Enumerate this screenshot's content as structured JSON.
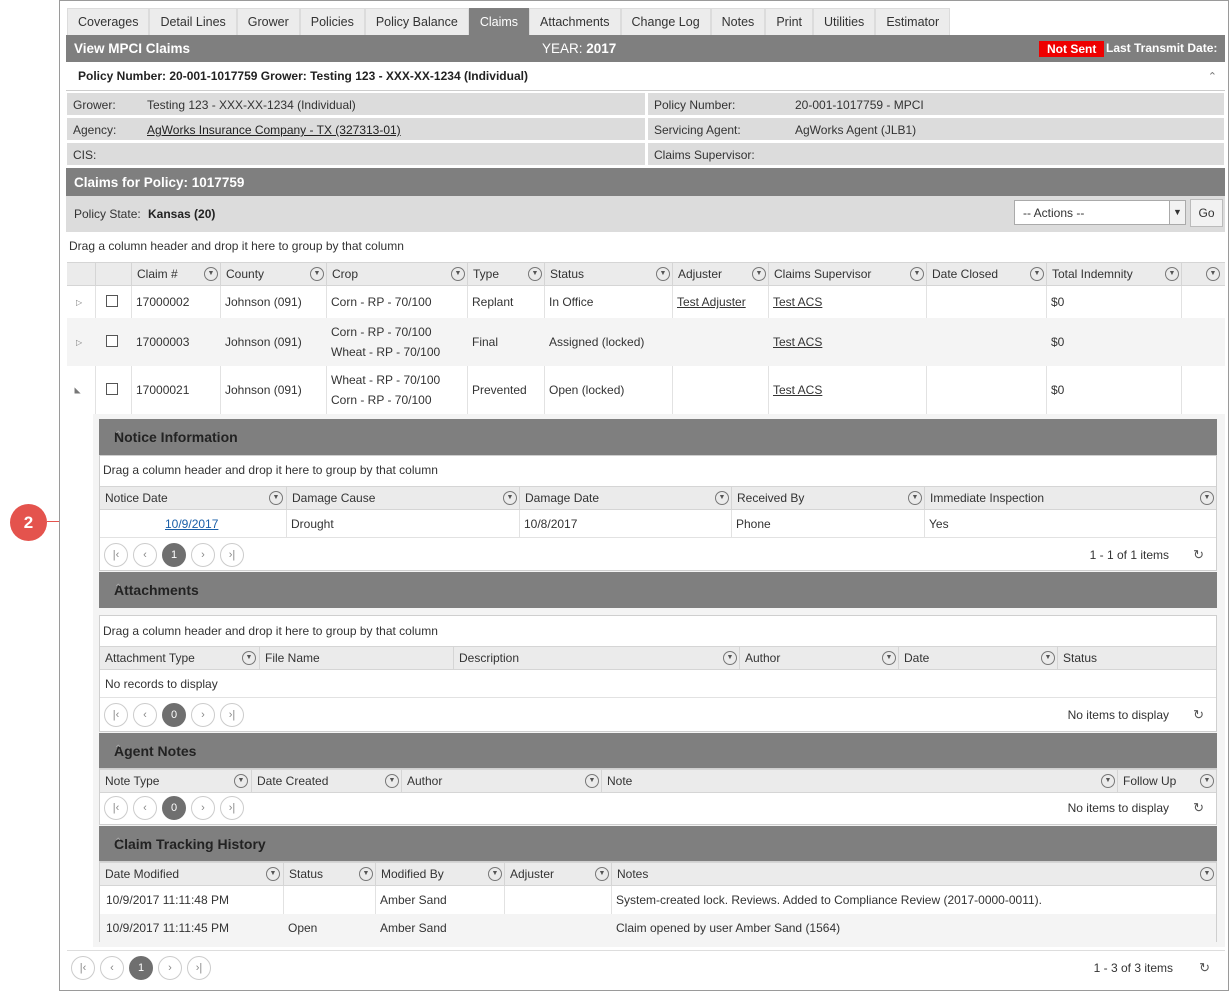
{
  "tabs": [
    "Coverages",
    "Detail Lines",
    "Grower",
    "Policies",
    "Policy Balance",
    "Claims",
    "Attachments",
    "Change Log",
    "Notes",
    "Print",
    "Utilities",
    "Estimator"
  ],
  "active_tab": "Claims",
  "titlebar": {
    "title": "View MPCI Claims",
    "year_label": "YEAR:",
    "year": "2017",
    "status_badge": "Not Sent",
    "last_transmit": "Last Transmit Date:"
  },
  "policy_header": "Policy Number: 20-001-1017759 Grower: Testing 123 - XXX-XX-1234 (Individual)",
  "info": {
    "grower_k": "Grower:",
    "grower_v": "Testing 123 - XXX-XX-1234 (Individual)",
    "agency_k": "Agency:",
    "agency_v": "AgWorks Insurance Company - TX (327313-01)",
    "cis_k": "CIS:",
    "policy_k": "Policy Number:",
    "policy_v": "20-001-1017759 - MPCI",
    "agent_k": "Servicing Agent:",
    "agent_v": "AgWorks Agent (JLB1)",
    "supervisor_k": "Claims Supervisor:"
  },
  "claims_title": "Claims for Policy: 1017759",
  "policy_state_k": "Policy State:",
  "policy_state_v": "Kansas (20)",
  "actions_select": "-- Actions --",
  "go_button": "Go",
  "group_hint": "Drag a column header and drop it here to group by that column",
  "claims_columns": [
    "Claim #",
    "County",
    "Crop",
    "Type",
    "Status",
    "Adjuster",
    "Claims Supervisor",
    "Date Closed",
    "Total Indemnity"
  ],
  "claims_rows": [
    {
      "claim": "17000002",
      "county": "Johnson (091)",
      "crop1": "Corn - RP - 70/100",
      "crop2": "",
      "type": "Replant",
      "status": "In Office",
      "adjuster": "Test Adjuster",
      "supervisor": "Test ACS",
      "closed": "",
      "indemnity": "$0"
    },
    {
      "claim": "17000003",
      "county": "Johnson (091)",
      "crop1": "Corn - RP - 70/100",
      "crop2": "Wheat - RP - 70/100",
      "type": "Final",
      "status": "Assigned (locked)",
      "adjuster": "",
      "supervisor": "Test ACS",
      "closed": "",
      "indemnity": "$0"
    },
    {
      "claim": "17000021",
      "county": "Johnson (091)",
      "crop1": "Wheat - RP - 70/100",
      "crop2": "Corn - RP - 70/100",
      "type": "Prevented",
      "status": "Open (locked)",
      "adjuster": "",
      "supervisor": "Test ACS",
      "closed": "",
      "indemnity": "$0"
    }
  ],
  "notice": {
    "title": "Notice Information",
    "columns": [
      "Notice Date",
      "Damage Cause",
      "Damage Date",
      "Received By",
      "Immediate Inspection"
    ],
    "row": {
      "notice_date": "10/9/2017",
      "cause": "Drought",
      "damage_date": "10/8/2017",
      "received": "Phone",
      "inspection": "Yes"
    },
    "page": "1",
    "info": "1 - 1 of 1 items"
  },
  "attachments": {
    "title": "Attachments",
    "columns": [
      "Attachment Type",
      "File Name",
      "Description",
      "Author",
      "Date",
      "Status"
    ],
    "empty": "No records to display",
    "page": "0",
    "info": "No items to display"
  },
  "agent_notes": {
    "title": "Agent Notes",
    "columns": [
      "Note Type",
      "Date Created",
      "Author",
      "Note",
      "Follow Up"
    ],
    "page": "0",
    "info": "No items to display"
  },
  "tracking": {
    "title": "Claim Tracking History",
    "columns": [
      "Date Modified",
      "Status",
      "Modified By",
      "Adjuster",
      "Notes"
    ],
    "rows": [
      {
        "date": "10/9/2017 11:11:48 PM",
        "status": "",
        "by": "Amber Sand",
        "adjuster": "",
        "notes": "System-created lock. Reviews. Added to Compliance Review (2017-0000-0011)."
      },
      {
        "date": "10/9/2017 11:11:45 PM",
        "status": "Open",
        "by": "Amber Sand",
        "adjuster": "",
        "notes": "Claim opened by user Amber Sand (1564)"
      }
    ]
  },
  "main_pager": {
    "page": "1",
    "info": "1 - 3 of 3 items"
  },
  "callout_number": "2",
  "icons": {
    "filter": "filter-icon",
    "refresh": "refresh-icon",
    "collapse": "chevron-up-icon",
    "expand": "triangle-right-icon"
  }
}
